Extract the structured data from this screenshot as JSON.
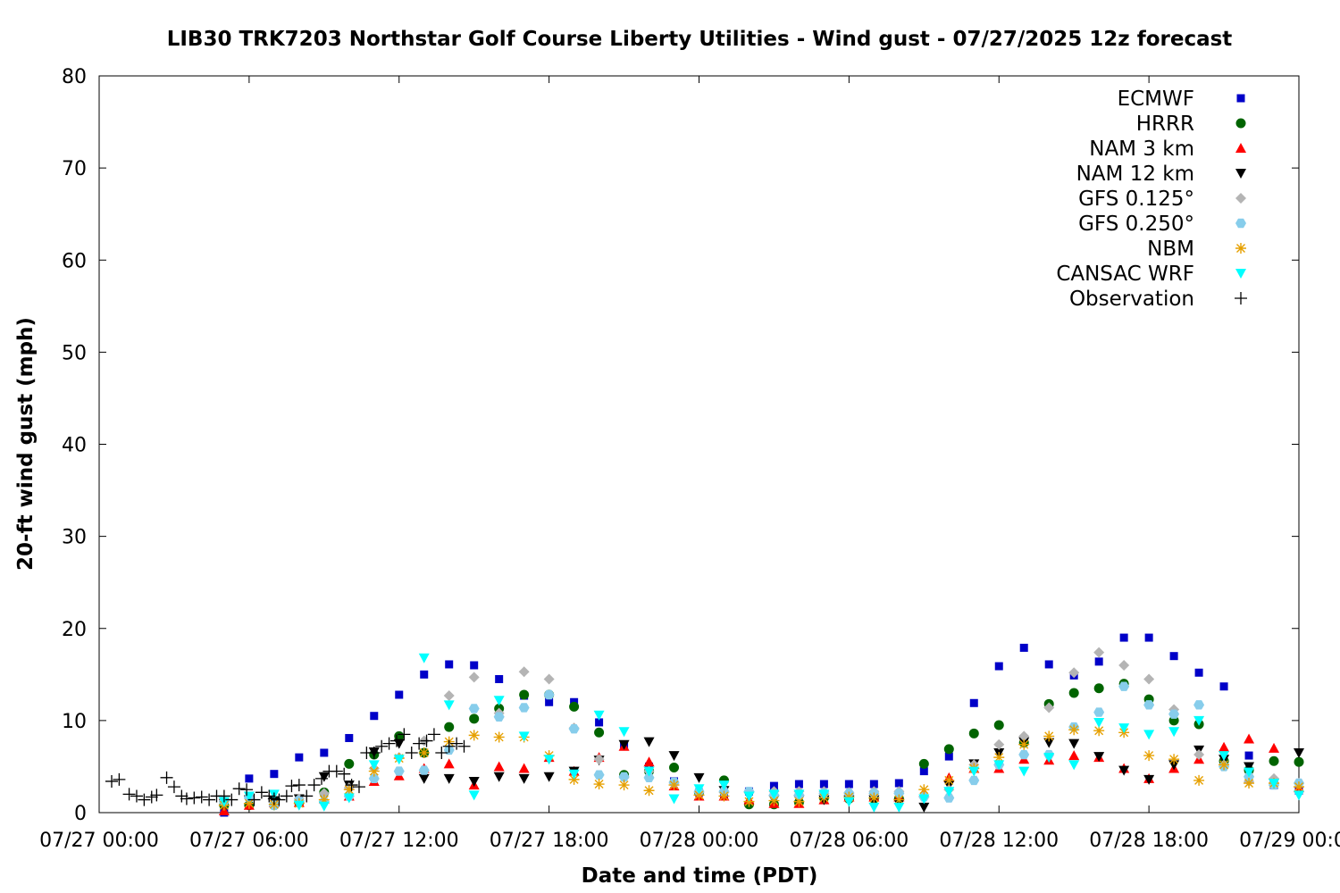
{
  "chart_data": {
    "type": "scatter",
    "title": "LIB30 TRK7203 Northstar Golf Course Liberty Utilities - Wind gust - 07/27/2025 12z forecast",
    "xlabel": "Date and time (PDT)",
    "ylabel": "20-ft wind gust (mph)",
    "xlim": [
      "07/27 00:00",
      "07/29 00:00"
    ],
    "ylim": [
      0,
      80
    ],
    "x_unit": "hours since 07/27 00:00 PDT",
    "x_ticks": [
      0,
      6,
      12,
      18,
      24,
      30,
      36,
      42,
      48
    ],
    "x_tick_labels": [
      "07/27 00:00",
      "07/27 06:00",
      "07/27 12:00",
      "07/27 18:00",
      "07/28 00:00",
      "07/28 06:00",
      "07/28 12:00",
      "07/28 18:00",
      "07/29 00:00"
    ],
    "y_ticks": [
      0,
      10,
      20,
      30,
      40,
      50,
      60,
      70,
      80
    ],
    "legend_position": "top-right",
    "grid": false,
    "series": [
      {
        "name": "ECMWF",
        "marker": "square",
        "color": "#0000c8",
        "x": [
          5,
          6,
          7,
          8,
          9,
          10,
          11,
          12,
          13,
          14,
          15,
          16,
          17,
          18,
          19,
          20,
          21,
          22,
          23,
          24,
          25,
          26,
          27,
          28,
          29,
          30,
          31,
          32,
          33,
          34,
          35,
          36,
          37,
          38,
          39,
          40,
          41,
          42,
          43,
          44,
          45,
          46,
          47,
          48
        ],
        "y": [
          0,
          3.7,
          4.2,
          6.0,
          6.5,
          8.1,
          10.5,
          12.8,
          15.0,
          16.1,
          16.0,
          14.5,
          12.7,
          12.0,
          12.0,
          9.8,
          7.3,
          5.0,
          3.4,
          2.2,
          2.0,
          2.3,
          2.9,
          3.1,
          3.1,
          3.1,
          3.1,
          3.2,
          4.5,
          6.1,
          11.9,
          15.9,
          17.9,
          16.1,
          14.9,
          16.4,
          19.0,
          19.0,
          17.0,
          15.2,
          13.7,
          6.2,
          3.0,
          2.4
        ]
      },
      {
        "name": "HRRR",
        "marker": "circle",
        "color": "#006400",
        "x": [
          5,
          6,
          7,
          8,
          9,
          10,
          11,
          12,
          13,
          14,
          15,
          16,
          17,
          18,
          19,
          20,
          21,
          22,
          23,
          24,
          25,
          26,
          27,
          28,
          29,
          30,
          31,
          32,
          33,
          34,
          35,
          36,
          37,
          38,
          39,
          40,
          41,
          42,
          43,
          44,
          45,
          46,
          47,
          48
        ],
        "y": [
          0.8,
          0.8,
          0.8,
          1.1,
          2.2,
          5.3,
          6.3,
          8.3,
          6.5,
          9.3,
          10.2,
          11.3,
          12.8,
          12.8,
          11.5,
          8.7,
          4.1,
          4.5,
          4.9,
          2.2,
          3.5,
          0.9,
          0.9,
          1.1,
          1.6,
          1.5,
          1.5,
          1.5,
          5.3,
          6.9,
          8.6,
          9.5,
          7.6,
          11.8,
          13.0,
          13.5,
          14.0,
          12.3,
          10.0,
          9.6,
          5.6,
          4.6,
          5.6,
          5.5
        ]
      },
      {
        "name": "NAM 3 km",
        "marker": "triangle-up",
        "color": "#ff0000",
        "x": [
          5,
          6,
          7,
          8,
          9,
          10,
          11,
          12,
          13,
          14,
          15,
          16,
          17,
          18,
          19,
          20,
          21,
          22,
          23,
          24,
          25,
          26,
          27,
          28,
          29,
          30,
          31,
          32,
          33,
          34,
          35,
          36,
          37,
          38,
          39,
          40,
          41,
          42,
          43,
          44,
          45,
          46,
          47,
          48
        ],
        "y": [
          0.2,
          0.8,
          1.1,
          1.1,
          1.5,
          1.8,
          3.4,
          4.0,
          4.8,
          5.3,
          3.0,
          5.0,
          4.8,
          6.0,
          4.5,
          6.0,
          7.2,
          5.5,
          2.9,
          1.8,
          1.8,
          1.4,
          1.0,
          1.0,
          1.4,
          1.7,
          1.7,
          1.7,
          2.2,
          3.8,
          4.8,
          4.8,
          5.8,
          5.7,
          6.2,
          6.0,
          4.8,
          3.7,
          4.8,
          5.8,
          7.1,
          8.0,
          7.0,
          2.7
        ]
      },
      {
        "name": "NAM 12 km",
        "marker": "triangle-down",
        "color": "#000000",
        "x": [
          5,
          6,
          7,
          8,
          9,
          10,
          11,
          12,
          13,
          14,
          15,
          16,
          17,
          18,
          19,
          20,
          21,
          22,
          23,
          24,
          25,
          26,
          27,
          28,
          29,
          30,
          31,
          32,
          33,
          34,
          35,
          36,
          37,
          38,
          39,
          40,
          41,
          42,
          43,
          44,
          45,
          46,
          47,
          48
        ],
        "y": [
          1.0,
          1.4,
          1.3,
          1.5,
          3.9,
          3.0,
          6.6,
          7.5,
          3.7,
          3.7,
          3.4,
          3.9,
          3.7,
          3.9,
          4.5,
          5.7,
          7.4,
          7.7,
          6.2,
          3.8,
          2.4,
          1.8,
          1.4,
          1.4,
          1.4,
          1.4,
          1.4,
          1.0,
          0.6,
          3.0,
          5.3,
          6.5,
          7.7,
          7.6,
          7.5,
          6.1,
          4.6,
          3.6,
          5.2,
          6.8,
          5.8,
          5.0,
          3.2,
          6.5
        ]
      },
      {
        "name": "GFS 0.125°",
        "marker": "diamond",
        "color": "#b4b4b4",
        "x": [
          5,
          6,
          7,
          8,
          9,
          10,
          11,
          12,
          13,
          14,
          15,
          16,
          17,
          18,
          19,
          20,
          21,
          22,
          23,
          24,
          25,
          26,
          27,
          28,
          29,
          30,
          31,
          32,
          33,
          34,
          35,
          36,
          37,
          38,
          39,
          40,
          41,
          42,
          43,
          44,
          45,
          46,
          47,
          48
        ],
        "y": [
          1.3,
          1.6,
          0.9,
          1.5,
          2.1,
          2.7,
          4.8,
          6.0,
          7.8,
          12.7,
          14.7,
          10.8,
          15.3,
          14.5,
          9.2,
          5.8,
          3.8,
          4.5,
          3.2,
          2.2,
          2.2,
          2.2,
          2.3,
          2.3,
          2.3,
          2.2,
          2.3,
          2.3,
          1.8,
          2.5,
          5.2,
          7.4,
          8.3,
          11.4,
          15.2,
          17.4,
          16.0,
          14.5,
          11.2,
          6.3,
          5.2,
          3.4,
          3.7,
          3.2
        ]
      },
      {
        "name": "GFS 0.250°",
        "marker": "hexagon",
        "color": "#87cdeb",
        "x": [
          5,
          6,
          7,
          8,
          9,
          10,
          11,
          12,
          13,
          14,
          15,
          16,
          17,
          18,
          19,
          20,
          21,
          22,
          23,
          24,
          25,
          26,
          27,
          28,
          29,
          30,
          31,
          32,
          33,
          34,
          35,
          36,
          37,
          38,
          39,
          40,
          41,
          42,
          43,
          44,
          45,
          46,
          47,
          48
        ],
        "y": [
          1.2,
          1.6,
          0.8,
          1.3,
          1.2,
          1.8,
          3.7,
          4.5,
          4.6,
          6.8,
          11.3,
          10.4,
          11.4,
          12.8,
          9.1,
          4.1,
          3.9,
          3.8,
          3.3,
          2.3,
          2.3,
          2.3,
          1.9,
          1.9,
          2.1,
          2.1,
          2.1,
          2.1,
          1.7,
          1.6,
          3.5,
          5.2,
          6.3,
          6.3,
          9.3,
          10.9,
          13.7,
          11.7,
          10.7,
          11.7,
          5.0,
          3.9,
          3.0,
          3.2
        ]
      },
      {
        "name": "NBM",
        "marker": "asterisk",
        "color": "#e6a000",
        "x": [
          5,
          6,
          7,
          8,
          9,
          10,
          11,
          12,
          13,
          14,
          15,
          16,
          17,
          18,
          19,
          20,
          21,
          22,
          23,
          24,
          25,
          26,
          27,
          28,
          29,
          30,
          31,
          32,
          33,
          34,
          35,
          36,
          37,
          38,
          39,
          40,
          41,
          42,
          43,
          44,
          45,
          46,
          47,
          48
        ],
        "y": [
          0.8,
          1.0,
          0.9,
          1.0,
          1.4,
          2.5,
          4.5,
          5.9,
          6.5,
          7.7,
          8.4,
          8.2,
          8.2,
          6.2,
          3.6,
          3.1,
          3.0,
          2.4,
          3.0,
          1.9,
          1.8,
          1.2,
          1.3,
          1.2,
          1.6,
          1.7,
          1.6,
          1.4,
          2.5,
          3.5,
          4.8,
          6.0,
          7.4,
          8.3,
          9.0,
          8.9,
          8.7,
          6.2,
          5.8,
          3.5,
          5.2,
          3.2,
          3.2,
          2.8
        ]
      },
      {
        "name": "CANSAC WRF",
        "marker": "triangle-down",
        "color": "#00ffff",
        "x": [
          5,
          6,
          7,
          8,
          9,
          10,
          11,
          12,
          13,
          14,
          15,
          16,
          17,
          18,
          19,
          20,
          21,
          22,
          23,
          24,
          25,
          26,
          27,
          28,
          29,
          30,
          31,
          32,
          33,
          34,
          35,
          36,
          37,
          38,
          39,
          40,
          41,
          42,
          43,
          44,
          45,
          46,
          47,
          48
        ],
        "y": [
          1.2,
          1.8,
          2.0,
          0.8,
          0.7,
          1.6,
          5.2,
          5.8,
          16.8,
          11.7,
          1.9,
          12.2,
          8.3,
          5.8,
          4.2,
          10.6,
          8.8,
          4.5,
          1.5,
          2.6,
          3.0,
          1.8,
          2.0,
          2.0,
          2.0,
          1.2,
          0.6,
          0.6,
          1.5,
          2.3,
          4.5,
          5.2,
          4.5,
          6.0,
          5.2,
          9.8,
          9.2,
          8.5,
          8.8,
          10.0,
          6.2,
          4.4,
          3.2,
          1.9
        ]
      },
      {
        "name": "Observation",
        "marker": "plus",
        "color": "#000000",
        "x": [
          0.5,
          0.8,
          1.2,
          1.5,
          1.8,
          2.1,
          2.3,
          2.7,
          3.0,
          3.3,
          3.5,
          3.8,
          4.1,
          4.4,
          4.7,
          5.0,
          5.3,
          5.6,
          5.9,
          6.2,
          6.5,
          6.8,
          7.0,
          7.2,
          7.5,
          7.7,
          8.0,
          8.3,
          8.6,
          8.9,
          9.2,
          9.5,
          9.8,
          10.1,
          10.4,
          10.7,
          11.0,
          11.3,
          11.6,
          11.9,
          12.2,
          12.5,
          12.8,
          13.1,
          13.4,
          13.7,
          14.0,
          14.3,
          14.6
        ],
        "y": [
          3.4,
          3.6,
          2.0,
          1.8,
          1.4,
          1.7,
          1.9,
          3.8,
          2.8,
          1.8,
          1.5,
          1.6,
          1.7,
          1.4,
          1.8,
          1.8,
          1.4,
          2.6,
          2.5,
          1.4,
          2.2,
          1.8,
          1.5,
          1.4,
          1.8,
          2.9,
          3.0,
          1.8,
          3.0,
          3.7,
          4.5,
          4.5,
          4.2,
          3.0,
          2.8,
          6.5,
          6.5,
          7.2,
          7.5,
          7.8,
          8.5,
          6.5,
          7.5,
          7.8,
          8.5,
          6.5,
          7.2,
          7.5,
          7.2
        ]
      }
    ]
  }
}
